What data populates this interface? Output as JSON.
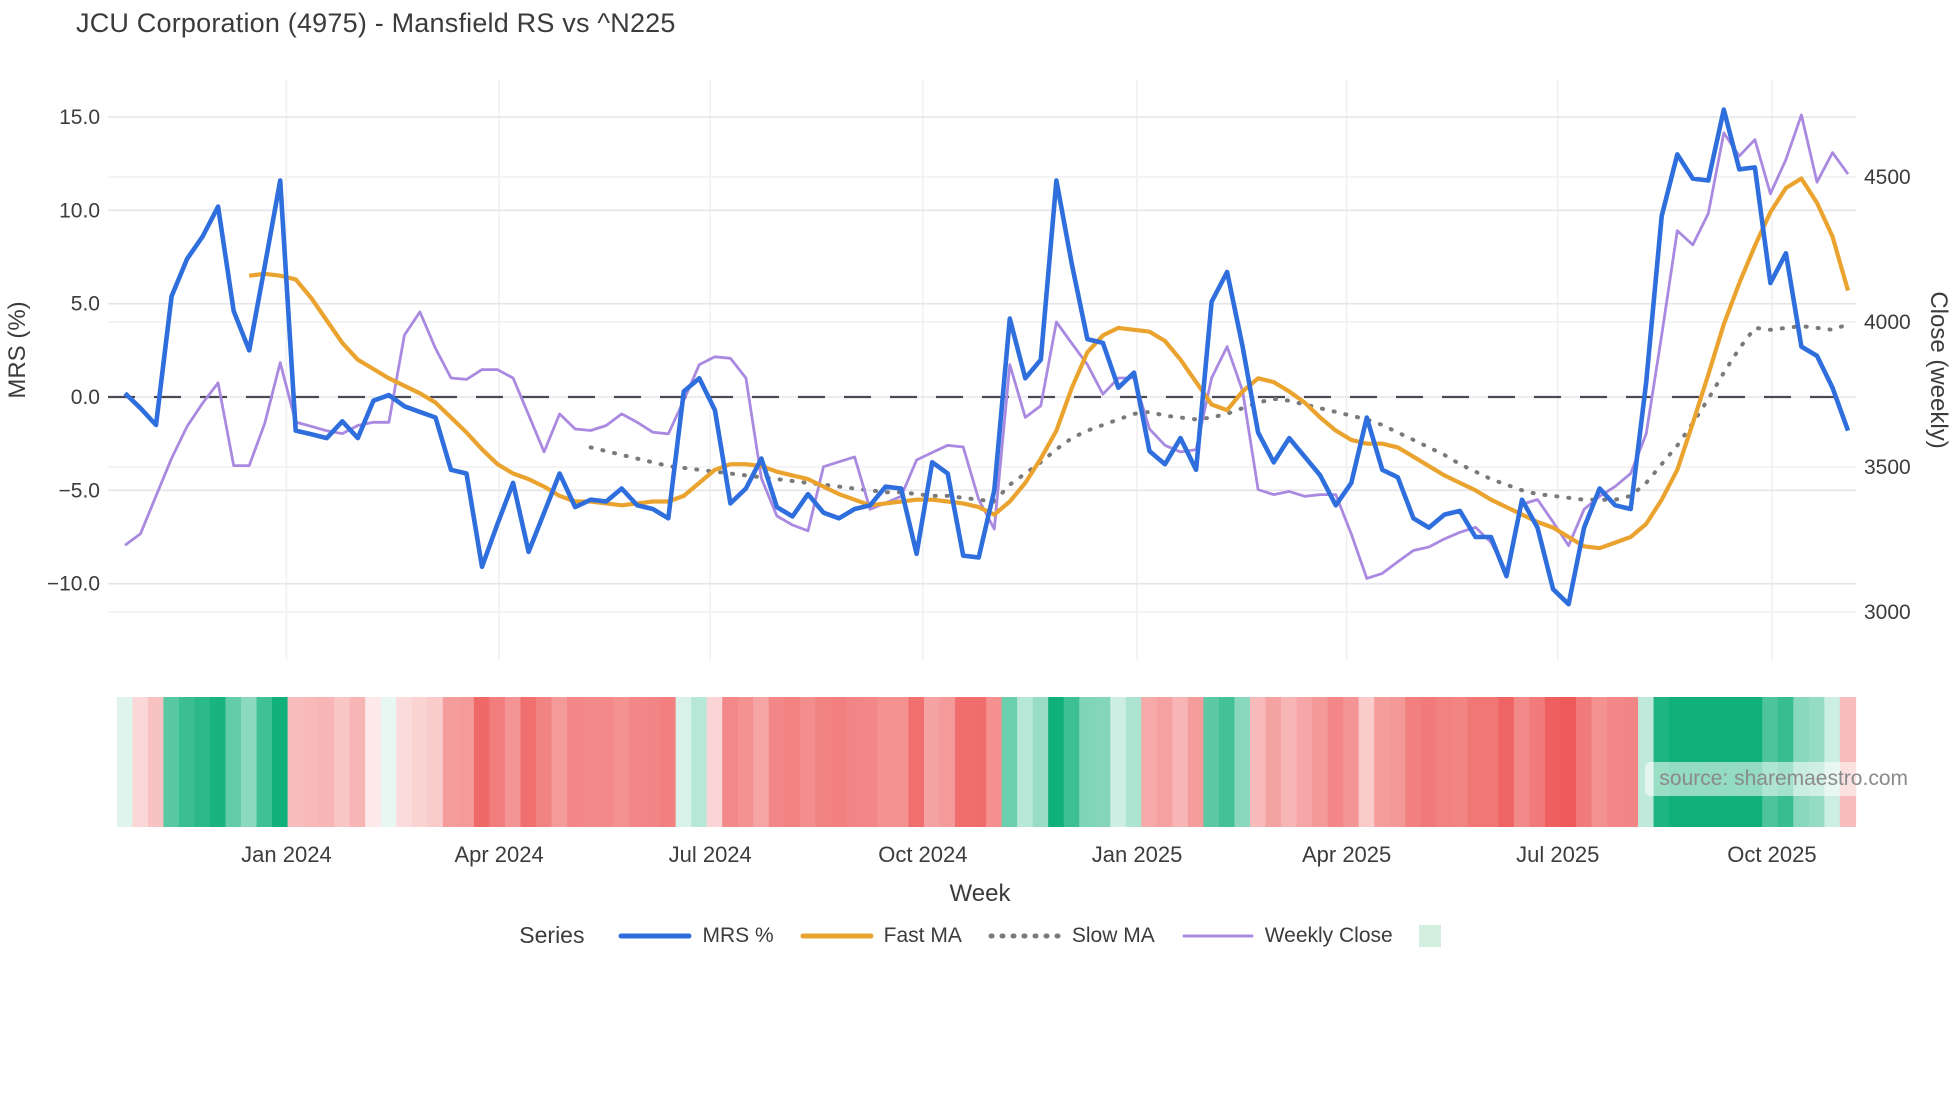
{
  "title": "JCU Corporation (4975) - Mansfield RS vs ^N225",
  "source_note": "source: sharemaestro.com",
  "colors": {
    "mrs_line": "#2f6fdd",
    "fast_ma_line": "#eaa32e",
    "slow_ma_line": "#7a7a7a",
    "weekly_close_line": "#a98ae0",
    "zero_line": "#4a4a55",
    "grid_major": "#e6e6ea",
    "grid_minor": "#f1f1f4",
    "heat_positive": "#10b07a",
    "heat_negative": "#ee5a5a",
    "heat_legend_patch": "#d4efe0",
    "text": "#3c3c3c"
  },
  "legend": {
    "title": "Series",
    "items": [
      {
        "label": "MRS %",
        "swatch": "line",
        "color": "#2f6fdd"
      },
      {
        "label": "Fast MA",
        "swatch": "line",
        "color": "#eaa32e"
      },
      {
        "label": "Slow MA",
        "swatch": "dotted",
        "color": "#7a7a7a"
      },
      {
        "label": "Weekly Close",
        "swatch": "thin-line",
        "color": "#a98ae0"
      },
      {
        "label": "",
        "swatch": "patch",
        "color": "#d4efe0"
      }
    ]
  },
  "chart_data": {
    "type": "line",
    "title": "JCU Corporation (4975) - Mansfield RS vs ^N225",
    "xlabel": "Week",
    "ylabel_left": "MRS (%)",
    "ylabel_right": "Close (weekly)",
    "n_points": 112,
    "x_tick_labels": [
      "Jan 2024",
      "Apr 2024",
      "Jul 2024",
      "Oct 2024",
      "Jan 2025",
      "Apr 2025",
      "Jul 2025",
      "Oct 2025"
    ],
    "x_tick_positions": [
      10.4,
      24.1,
      37.7,
      51.4,
      65.2,
      78.7,
      92.3,
      106.1
    ],
    "left_axis": {
      "ticks": [
        15.0,
        10.0,
        5.0,
        0.0,
        -5.0,
        -10.0
      ],
      "tick_labels": [
        "15.0",
        "10.0",
        "5.0",
        "0.0",
        "−5.0",
        "−10.0"
      ],
      "range_hint": [
        -14.0,
        17.0
      ]
    },
    "right_axis": {
      "ticks": [
        4500,
        4000,
        3500,
        3000
      ],
      "tick_labels": [
        "4500",
        "4000",
        "3500",
        "3000"
      ],
      "range_hint": [
        2835,
        4835
      ]
    },
    "zero_reference_line": 0.0,
    "series": [
      {
        "name": "MRS %",
        "axis": "left",
        "style": "solid",
        "values": [
          0.2,
          -0.6,
          -1.5,
          5.4,
          7.4,
          8.6,
          10.2,
          4.6,
          2.5,
          7.0,
          11.6,
          -1.8,
          -2.0,
          -2.2,
          -1.3,
          -2.2,
          -0.2,
          0.1,
          -0.5,
          -0.8,
          -1.1,
          -3.9,
          -4.1,
          -9.1,
          -6.8,
          -4.6,
          -8.3,
          -6.2,
          -4.1,
          -5.9,
          -5.5,
          -5.6,
          -4.9,
          -5.8,
          -6.0,
          -6.5,
          0.3,
          1.0,
          -0.7,
          -5.7,
          -4.9,
          -3.3,
          -5.9,
          -6.4,
          -5.2,
          -6.2,
          -6.5,
          -6.0,
          -5.8,
          -4.8,
          -4.9,
          -8.4,
          -3.5,
          -4.1,
          -8.5,
          -8.6,
          -5.0,
          4.2,
          1.0,
          2.0,
          11.6,
          7.1,
          3.1,
          2.9,
          0.5,
          1.3,
          -2.9,
          -3.6,
          -2.2,
          -3.9,
          5.1,
          6.7,
          2.7,
          -1.9,
          -3.5,
          -2.2,
          -3.2,
          -4.2,
          -5.8,
          -4.6,
          -1.1,
          -3.9,
          -4.3,
          -6.5,
          -7.0,
          -6.3,
          -6.1,
          -7.5,
          -7.5,
          -9.6,
          -5.5,
          -7.0,
          -10.3,
          -11.1,
          -7.0,
          -4.9,
          -5.8,
          -6.0,
          0.8,
          9.7,
          13.0,
          11.7,
          11.6,
          15.4,
          12.2,
          12.3,
          6.1,
          7.7,
          2.7,
          2.2,
          0.5,
          -1.8
        ]
      },
      {
        "name": "Fast MA",
        "axis": "left",
        "style": "solid",
        "values": [
          null,
          null,
          null,
          null,
          null,
          null,
          null,
          null,
          6.5,
          6.6,
          6.5,
          6.3,
          5.3,
          4.1,
          2.9,
          2.0,
          1.5,
          1.0,
          0.6,
          0.2,
          -0.3,
          -1.1,
          -1.9,
          -2.8,
          -3.6,
          -4.1,
          -4.4,
          -4.8,
          -5.3,
          -5.6,
          -5.6,
          -5.7,
          -5.8,
          -5.7,
          -5.6,
          -5.6,
          -5.3,
          -4.6,
          -3.9,
          -3.6,
          -3.6,
          -3.7,
          -4.0,
          -4.2,
          -4.4,
          -4.8,
          -5.2,
          -5.5,
          -5.8,
          -5.7,
          -5.6,
          -5.5,
          -5.5,
          -5.6,
          -5.7,
          -5.9,
          -6.3,
          -5.6,
          -4.6,
          -3.3,
          -1.8,
          0.5,
          2.4,
          3.3,
          3.7,
          3.6,
          3.5,
          3.0,
          2.0,
          0.8,
          -0.4,
          -0.7,
          0.3,
          1.0,
          0.8,
          0.3,
          -0.3,
          -1.1,
          -1.8,
          -2.3,
          -2.5,
          -2.5,
          -2.7,
          -3.2,
          -3.7,
          -4.2,
          -4.6,
          -5.0,
          -5.5,
          -5.9,
          -6.3,
          -6.7,
          -7.0,
          -7.5,
          -8.0,
          -8.1,
          -7.8,
          -7.5,
          -6.8,
          -5.5,
          -3.9,
          -1.4,
          1.2,
          3.9,
          6.1,
          8.1,
          9.9,
          11.2,
          11.7,
          10.4,
          8.6,
          5.7
        ]
      },
      {
        "name": "Slow MA",
        "axis": "left",
        "style": "dotted",
        "values": [
          null,
          null,
          null,
          null,
          null,
          null,
          null,
          null,
          null,
          null,
          null,
          null,
          null,
          null,
          null,
          null,
          null,
          null,
          null,
          null,
          null,
          null,
          null,
          null,
          null,
          null,
          null,
          null,
          null,
          null,
          -2.7,
          -2.9,
          -3.1,
          -3.3,
          -3.5,
          -3.7,
          -3.8,
          -3.9,
          -4.0,
          -4.1,
          -4.2,
          -4.3,
          -4.4,
          -4.5,
          -4.6,
          -4.7,
          -4.8,
          -4.9,
          -5.0,
          -5.1,
          -5.1,
          -5.2,
          -5.3,
          -5.3,
          -5.4,
          -5.5,
          -5.6,
          -4.7,
          -4.1,
          -3.5,
          -2.8,
          -2.2,
          -1.8,
          -1.5,
          -1.2,
          -0.9,
          -0.8,
          -1.0,
          -1.1,
          -1.2,
          -1.1,
          -0.9,
          -0.6,
          -0.3,
          -0.1,
          -0.2,
          -0.4,
          -0.6,
          -0.8,
          -1.0,
          -1.2,
          -1.5,
          -1.9,
          -2.3,
          -2.7,
          -3.1,
          -3.6,
          -4.0,
          -4.4,
          -4.7,
          -5.0,
          -5.2,
          -5.3,
          -5.4,
          -5.5,
          -5.5,
          -5.5,
          -5.3,
          -4.6,
          -3.6,
          -2.6,
          -1.4,
          -0.1,
          1.3,
          2.6,
          3.7,
          3.6,
          3.7,
          3.8,
          3.7,
          3.6,
          3.9
        ]
      },
      {
        "name": "Weekly Close",
        "axis": "right",
        "style": "solid",
        "values": [
          3230,
          3270,
          3400,
          3530,
          3640,
          3720,
          3790,
          3505,
          3505,
          3650,
          3860,
          3655,
          3640,
          3625,
          3615,
          3643,
          3654,
          3654,
          3955,
          4035,
          3909,
          3807,
          3802,
          3836,
          3836,
          3807,
          3680,
          3552,
          3683,
          3631,
          3626,
          3643,
          3683,
          3654,
          3620,
          3614,
          3730,
          3853,
          3880,
          3875,
          3807,
          3461,
          3331,
          3300,
          3280,
          3501,
          3518,
          3535,
          3354,
          3376,
          3399,
          3524,
          3550,
          3575,
          3569,
          3388,
          3286,
          3853,
          3671,
          3711,
          4000,
          3926,
          3853,
          3751,
          3807,
          3807,
          3631,
          3575,
          3552,
          3560,
          3807,
          3915,
          3762,
          3422,
          3405,
          3416,
          3399,
          3405,
          3405,
          3269,
          3116,
          3133,
          3173,
          3212,
          3224,
          3252,
          3275,
          3292,
          3240,
          3139,
          3371,
          3388,
          3310,
          3229,
          3354,
          3399,
          3433,
          3478,
          3614,
          3955,
          4315,
          4266,
          4374,
          4652,
          4572,
          4629,
          4442,
          4560,
          4714,
          4482,
          4584,
          4510
        ]
      }
    ],
    "heatmap_strip": {
      "description": "weekly cells colored by MRS % value: green positive, red negative, intensity by magnitude",
      "source_series": "MRS %",
      "positive_color": "#10b07a",
      "negative_color": "#ee5a5a",
      "saturation_abs_value": 11
    }
  }
}
